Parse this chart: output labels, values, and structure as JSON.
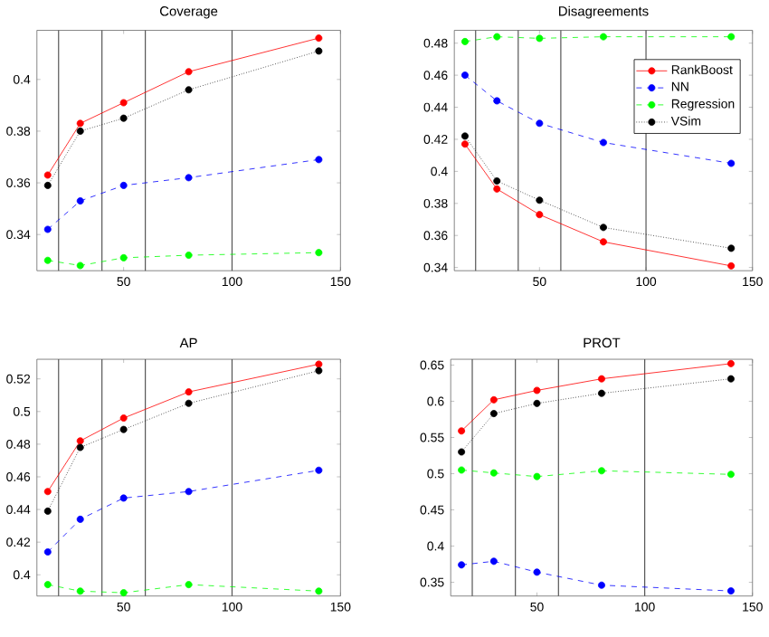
{
  "chart_data": [
    {
      "type": "line",
      "title": "Coverage",
      "x": [
        15,
        30,
        50,
        80,
        140
      ],
      "xlim": [
        10,
        150
      ],
      "xticks": [
        50,
        100,
        150
      ],
      "ylim": [
        0.326,
        0.419
      ],
      "yticks": [
        0.34,
        0.36,
        0.38,
        0.4
      ],
      "marker": "circle",
      "legend": false,
      "ref_lines": [
        {
          "axis": "x",
          "value": 20,
          "color": "#555555"
        },
        {
          "axis": "x",
          "value": 40,
          "color": "#555555"
        },
        {
          "axis": "x",
          "value": 60,
          "color": "#555555"
        },
        {
          "axis": "x",
          "value": 100,
          "color": "#555555"
        }
      ],
      "series": [
        {
          "color": "#ff0000",
          "line_style": "solid",
          "values": [
            0.363,
            0.383,
            0.391,
            0.403,
            0.416
          ]
        },
        {
          "color": "#0000ff",
          "line_style": "dashed",
          "values": [
            0.342,
            0.353,
            0.359,
            0.362,
            0.369
          ]
        },
        {
          "color": "#00ff00",
          "line_style": "dashed",
          "values": [
            0.33,
            0.328,
            0.331,
            0.332,
            0.333
          ]
        },
        {
          "color": "#000000",
          "line_style": "dotted",
          "values": [
            0.359,
            0.38,
            0.385,
            0.396,
            0.411
          ]
        }
      ]
    },
    {
      "type": "line",
      "title": "Disagreements",
      "x": [
        15,
        30,
        50,
        80,
        140
      ],
      "xlim": [
        10,
        150
      ],
      "xticks": [
        50,
        100,
        150
      ],
      "ylim": [
        0.338,
        0.488
      ],
      "yticks": [
        0.34,
        0.36,
        0.38,
        0.4,
        0.42,
        0.44,
        0.46,
        0.48
      ],
      "marker": "circle",
      "legend": "top right",
      "ref_lines": [
        {
          "axis": "x",
          "value": 20,
          "color": "#555555"
        },
        {
          "axis": "x",
          "value": 40,
          "color": "#555555"
        },
        {
          "axis": "x",
          "value": 60,
          "color": "#555555"
        },
        {
          "axis": "x",
          "value": 100,
          "color": "#555555"
        }
      ],
      "series": [
        {
          "name": "RankBoost",
          "color": "#ff0000",
          "line_style": "solid",
          "values": [
            0.417,
            0.389,
            0.373,
            0.356,
            0.341
          ]
        },
        {
          "name": "NN",
          "color": "#0000ff",
          "line_style": "dashed",
          "values": [
            0.46,
            0.444,
            0.43,
            0.418,
            0.405
          ]
        },
        {
          "name": "Regression",
          "color": "#00ff00",
          "line_style": "dashed",
          "values": [
            0.481,
            0.484,
            0.483,
            0.484,
            0.484
          ]
        },
        {
          "name": "VSim",
          "color": "#000000",
          "line_style": "dotted",
          "values": [
            0.422,
            0.394,
            0.382,
            0.365,
            0.352
          ]
        }
      ]
    },
    {
      "type": "line",
      "title": "AP",
      "x": [
        15,
        30,
        50,
        80,
        140
      ],
      "xlim": [
        10,
        150
      ],
      "xticks": [
        50,
        100,
        150
      ],
      "ylim": [
        0.387,
        0.532
      ],
      "yticks": [
        0.4,
        0.42,
        0.44,
        0.46,
        0.48,
        0.5,
        0.52
      ],
      "marker": "circle",
      "legend": false,
      "ref_lines": [
        {
          "axis": "x",
          "value": 20,
          "color": "#555555"
        },
        {
          "axis": "x",
          "value": 40,
          "color": "#555555"
        },
        {
          "axis": "x",
          "value": 60,
          "color": "#555555"
        },
        {
          "axis": "x",
          "value": 100,
          "color": "#555555"
        }
      ],
      "series": [
        {
          "color": "#ff0000",
          "line_style": "solid",
          "values": [
            0.451,
            0.482,
            0.496,
            0.512,
            0.529
          ]
        },
        {
          "color": "#0000ff",
          "line_style": "dashed",
          "values": [
            0.414,
            0.434,
            0.447,
            0.451,
            0.464
          ]
        },
        {
          "color": "#00ff00",
          "line_style": "dashed",
          "values": [
            0.394,
            0.39,
            0.389,
            0.394,
            0.39
          ]
        },
        {
          "color": "#000000",
          "line_style": "dotted",
          "values": [
            0.439,
            0.478,
            0.489,
            0.505,
            0.525
          ]
        }
      ]
    },
    {
      "type": "line",
      "title": "PROT",
      "x": [
        15,
        30,
        50,
        80,
        140
      ],
      "xlim": [
        10,
        150
      ],
      "xticks": [
        50,
        100,
        150
      ],
      "ylim": [
        0.331,
        0.658
      ],
      "yticks": [
        0.35,
        0.4,
        0.45,
        0.5,
        0.55,
        0.6,
        0.65
      ],
      "marker": "circle",
      "legend": false,
      "ref_lines": [
        {
          "axis": "x",
          "value": 20,
          "color": "#555555"
        },
        {
          "axis": "x",
          "value": 40,
          "color": "#555555"
        },
        {
          "axis": "x",
          "value": 60,
          "color": "#555555"
        },
        {
          "axis": "x",
          "value": 100,
          "color": "#555555"
        }
      ],
      "series": [
        {
          "color": "#ff0000",
          "line_style": "solid",
          "values": [
            0.559,
            0.602,
            0.615,
            0.631,
            0.652
          ]
        },
        {
          "color": "#0000ff",
          "line_style": "dashed",
          "values": [
            0.374,
            0.379,
            0.364,
            0.346,
            0.338
          ]
        },
        {
          "color": "#00ff00",
          "line_style": "dashed",
          "values": [
            0.505,
            0.501,
            0.496,
            0.504,
            0.499
          ]
        },
        {
          "color": "#000000",
          "line_style": "dotted",
          "values": [
            0.53,
            0.583,
            0.597,
            0.611,
            0.631
          ]
        }
      ]
    }
  ]
}
